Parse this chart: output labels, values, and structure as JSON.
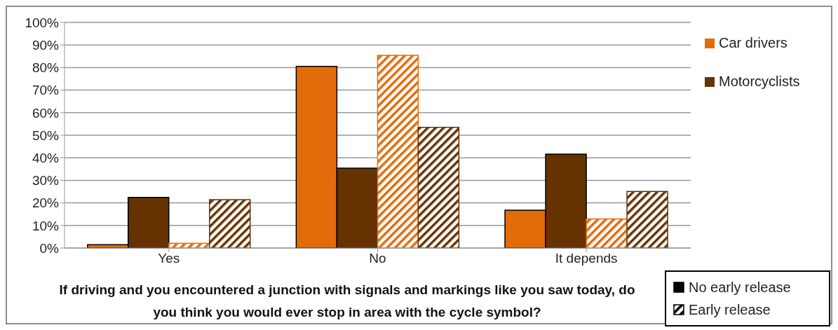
{
  "chart_data": {
    "type": "bar",
    "xlabel": "If driving and you encountered a junction with signals and markings like you saw today, do you think you would ever stop in area with the cycle symbol?",
    "categories": [
      "Yes",
      "No",
      "It depends"
    ],
    "series": [
      {
        "name": "Car drivers",
        "color": "#e36c0a",
        "values": [
          1.5,
          80.5,
          16.8
        ]
      },
      {
        "name": "Motorcyclists",
        "color": "#663300",
        "values": [
          22.4,
          35.4,
          41.6
        ]
      },
      {
        "color": "#e36c0a",
        "values": [
          2.1,
          85.4,
          12.9
        ]
      },
      {
        "color": "#663300",
        "values": [
          21.4,
          53.5,
          25.1
        ]
      }
    ],
    "ylim": [
      0,
      100
    ],
    "yticks": [
      {
        "value": 0,
        "label": "0%"
      },
      {
        "value": 10,
        "label": "10%"
      },
      {
        "value": 20,
        "label": "20%"
      },
      {
        "value": 30,
        "label": "30%"
      },
      {
        "value": 40,
        "label": "40%"
      },
      {
        "value": 50,
        "label": "50%"
      },
      {
        "value": 60,
        "label": "60%"
      },
      {
        "value": 70,
        "label": "70%"
      },
      {
        "value": 80,
        "label": "80%"
      },
      {
        "value": 90,
        "label": "90%"
      },
      {
        "value": 100,
        "label": "100%"
      }
    ],
    "grid": "y",
    "legend": "right",
    "annotations": [
      "No early release",
      "Early release"
    ]
  }
}
